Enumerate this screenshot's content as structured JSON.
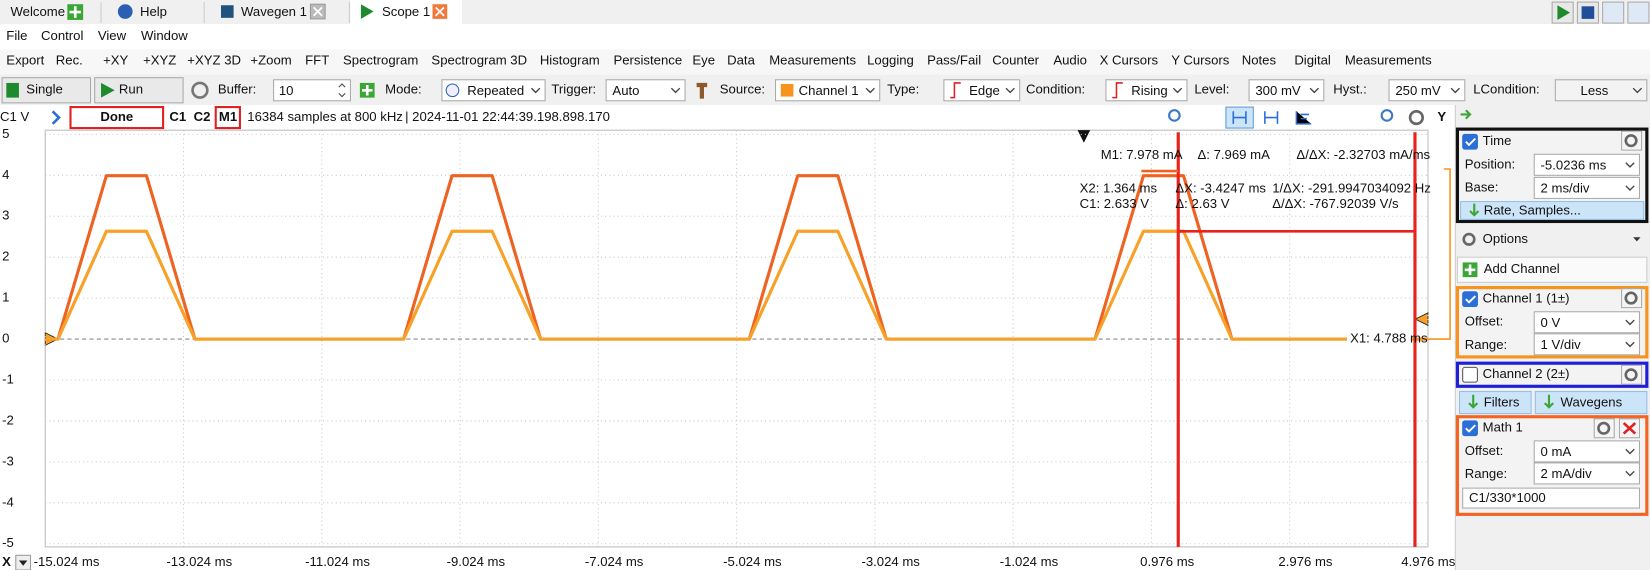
{
  "tabs": [
    "Welcome",
    "Help",
    "Wavegen 1",
    "Scope 1"
  ],
  "menu": [
    "File",
    "Control",
    "View",
    "Window"
  ],
  "toolbar": [
    "Export",
    "Rec.",
    "+XY",
    "+XYZ",
    "+XYZ 3D",
    "+Zoom",
    "FFT",
    "Spectrogram",
    "Spectrogram 3D",
    "Histogram",
    "Persistence",
    "Eye",
    "Data",
    "Measurements",
    "Logging",
    "Pass/Fail",
    "Counter",
    "Audio",
    "X Cursors",
    "Y Cursors",
    "Notes",
    "Digital",
    "Measurements"
  ],
  "controls": {
    "single": "Single",
    "run": "Run",
    "buffer_label": "Buffer:",
    "buffer": "10",
    "mode_label": "Mode:",
    "mode": "Repeated",
    "trigger_label": "Trigger:",
    "trigger": "Auto",
    "source_label": "Source:",
    "source": "Channel 1",
    "type_label": "Type:",
    "type": "Edge",
    "condition_label": "Condition:",
    "condition": "Rising",
    "level_label": "Level:",
    "level": "300 mV",
    "hyst_label": "Hyst.:",
    "hyst": "250 mV",
    "lcondition_label": "LCondition:",
    "lcondition": "Less"
  },
  "status": {
    "state": "Done",
    "c2": "C2",
    "samples": "16384 samples at 800 kHz",
    "timestamp": "| 2024-11-01 22:44:39.198.898.170",
    "y_button": "Y"
  },
  "plot": {
    "type": "line",
    "y_axis_label": "C1 V",
    "x_axis_label": "X",
    "xlim": [
      -15.024,
      4.976
    ],
    "ylim": [
      -5,
      5
    ],
    "xticks": [
      {
        "value": -15.024,
        "label": "-15.024 ms"
      },
      {
        "value": -13.024,
        "label": "-13.024 ms"
      },
      {
        "value": -11.024,
        "label": "-11.024 ms"
      },
      {
        "value": -9.024,
        "label": "-9.024 ms"
      },
      {
        "value": -7.024,
        "label": "-7.024 ms"
      },
      {
        "value": -5.024,
        "label": "-5.024 ms"
      },
      {
        "value": -3.024,
        "label": "-3.024 ms"
      },
      {
        "value": -1.024,
        "label": "-1.024 ms"
      },
      {
        "value": 0.976,
        "label": "0.976 ms"
      },
      {
        "value": 2.976,
        "label": "2.976 ms"
      },
      {
        "value": 4.976,
        "label": "4.976 ms"
      }
    ],
    "yticks": [
      5,
      4,
      3,
      2,
      1,
      0,
      -1,
      -2,
      -3,
      -4,
      -5
    ],
    "grid": true,
    "x": [
      -15.024,
      -14.84,
      -14.14,
      -13.56,
      -12.86,
      -9.84,
      -9.14,
      -8.56,
      -7.86,
      -4.84,
      -4.14,
      -3.56,
      -2.86,
      0.16,
      0.86,
      1.44,
      2.14,
      4.976
    ],
    "series": [
      {
        "name": "C1",
        "color": "#f7a128",
        "values": [
          0,
          0,
          2.633,
          2.633,
          0,
          0,
          2.633,
          2.633,
          0,
          0,
          2.633,
          2.633,
          0,
          0,
          2.633,
          2.633,
          0,
          0
        ]
      },
      {
        "name": "M1",
        "color": "#ee6322",
        "values": [
          0,
          0,
          7.978,
          7.978,
          0,
          0,
          7.978,
          7.978,
          0,
          0,
          7.978,
          7.978,
          0,
          0,
          7.978,
          7.978,
          0,
          0
        ]
      }
    ],
    "cursors": {
      "x1": {
        "value": 4.788,
        "label": "X1: 4.788 ms"
      },
      "x2": {
        "value": 1.364,
        "label": "X2: 1.364 ms"
      },
      "level": {
        "value": 2.633,
        "label": "C1: 2.633 V"
      },
      "readouts": [
        "M1: 7.978 mA",
        "Δ: 7.969 mA",
        "Δ/ΔX: -2.32703 mA/ms",
        "ΔX: -3.4247 ms",
        "1/ΔX: -291.9947034092 Hz",
        "Δ: 2.63 V",
        "Δ/ΔX: -767.92039 V/s"
      ]
    }
  },
  "panel": {
    "time": {
      "title": "Time",
      "position_label": "Position:",
      "position": "-5.0236 ms",
      "base_label": "Base:",
      "base": "2 ms/div",
      "rate": "Rate, Samples..."
    },
    "options": "Options",
    "add_channel": "Add Channel",
    "channel1": {
      "title": "Channel 1 (1±)",
      "offset_label": "Offset:",
      "offset": "0 V",
      "range_label": "Range:",
      "range": {
        "value": 1,
        "label": "1 V/div"
      }
    },
    "channel2": {
      "title": "Channel 2 (2±)"
    },
    "filters": "Filters",
    "wavegens": "Wavegens",
    "math1": {
      "title": "Math 1",
      "offset_label": "Offset:",
      "offset": "0 mA",
      "range_label": "Range:",
      "range": {
        "value": 2,
        "label": "2 mA/div"
      },
      "expression": "C1/330*1000"
    }
  }
}
